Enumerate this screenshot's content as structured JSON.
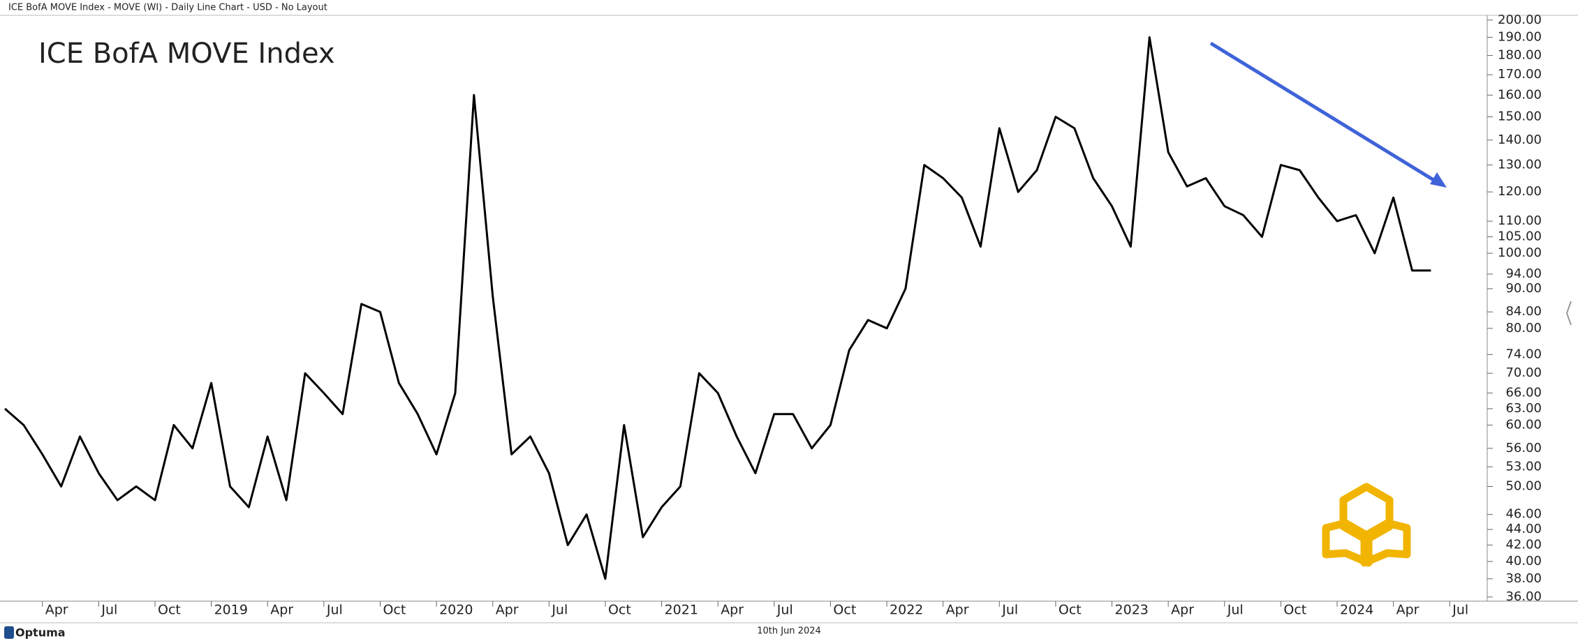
{
  "header": "ICE BofA MOVE Index - MOVE (WI) - Daily Line Chart - USD - No Layout",
  "footer": {
    "date": "10th Jun 2024",
    "brand": "Optuma"
  },
  "chart_data": {
    "type": "line",
    "title": "ICE BofA MOVE Index",
    "color": "#000000",
    "log_scale": true,
    "grid": false,
    "x": [
      "2018-02",
      "2018-03",
      "2018-04",
      "2018-05",
      "2018-06",
      "2018-07",
      "2018-08",
      "2018-09",
      "2018-10",
      "2018-11",
      "2018-12",
      "2019-01",
      "2019-02",
      "2019-03",
      "2019-04",
      "2019-05",
      "2019-06",
      "2019-07",
      "2019-08",
      "2019-09",
      "2019-10",
      "2019-11",
      "2019-12",
      "2020-01",
      "2020-02",
      "2020-03",
      "2020-04",
      "2020-05",
      "2020-06",
      "2020-07",
      "2020-08",
      "2020-09",
      "2020-10",
      "2020-11",
      "2020-12",
      "2021-01",
      "2021-02",
      "2021-03",
      "2021-04",
      "2021-05",
      "2021-06",
      "2021-07",
      "2021-08",
      "2021-09",
      "2021-10",
      "2021-11",
      "2021-12",
      "2022-01",
      "2022-02",
      "2022-03",
      "2022-04",
      "2022-05",
      "2022-06",
      "2022-07",
      "2022-08",
      "2022-09",
      "2022-10",
      "2022-11",
      "2022-12",
      "2023-01",
      "2023-02",
      "2023-03",
      "2023-04",
      "2023-05",
      "2023-06",
      "2023-07",
      "2023-08",
      "2023-09",
      "2023-10",
      "2023-11",
      "2023-12",
      "2024-01",
      "2024-02",
      "2024-03",
      "2024-04",
      "2024-05",
      "2024-06"
    ],
    "values": [
      63,
      60,
      55,
      50,
      58,
      52,
      48,
      50,
      48,
      60,
      56,
      68,
      50,
      47,
      58,
      48,
      70,
      66,
      62,
      86,
      84,
      68,
      62,
      55,
      66,
      160,
      88,
      55,
      58,
      52,
      42,
      46,
      38,
      60,
      43,
      47,
      50,
      70,
      66,
      58,
      52,
      62,
      62,
      56,
      60,
      75,
      82,
      80,
      90,
      130,
      125,
      118,
      102,
      145,
      120,
      128,
      150,
      145,
      125,
      115,
      102,
      190,
      135,
      122,
      125,
      115,
      112,
      105,
      130,
      128,
      118,
      110,
      112,
      100,
      118,
      95,
      95
    ],
    "xlim": [
      "2018-02",
      "2024-09"
    ],
    "xticks": [
      {
        "value": "2018-04",
        "label": "Apr"
      },
      {
        "value": "2018-07",
        "label": "Jul"
      },
      {
        "value": "2018-10",
        "label": "Oct"
      },
      {
        "value": "2019-01",
        "label": "2019"
      },
      {
        "value": "2019-04",
        "label": "Apr"
      },
      {
        "value": "2019-07",
        "label": "Jul"
      },
      {
        "value": "2019-10",
        "label": "Oct"
      },
      {
        "value": "2020-01",
        "label": "2020"
      },
      {
        "value": "2020-04",
        "label": "Apr"
      },
      {
        "value": "2020-07",
        "label": "Jul"
      },
      {
        "value": "2020-10",
        "label": "Oct"
      },
      {
        "value": "2021-01",
        "label": "2021"
      },
      {
        "value": "2021-04",
        "label": "Apr"
      },
      {
        "value": "2021-07",
        "label": "Jul"
      },
      {
        "value": "2021-10",
        "label": "Oct"
      },
      {
        "value": "2022-01",
        "label": "2022"
      },
      {
        "value": "2022-04",
        "label": "Apr"
      },
      {
        "value": "2022-07",
        "label": "Jul"
      },
      {
        "value": "2022-10",
        "label": "Oct"
      },
      {
        "value": "2023-01",
        "label": "2023"
      },
      {
        "value": "2023-04",
        "label": "Apr"
      },
      {
        "value": "2023-07",
        "label": "Jul"
      },
      {
        "value": "2023-10",
        "label": "Oct"
      },
      {
        "value": "2024-01",
        "label": "2024"
      },
      {
        "value": "2024-04",
        "label": "Apr"
      },
      {
        "value": "2024-07",
        "label": "Jul"
      }
    ],
    "ylim": [
      35.7,
      202.4
    ],
    "yticks": [
      {
        "value": 200,
        "label": "200.00"
      },
      {
        "value": 190,
        "label": "190.00"
      },
      {
        "value": 180,
        "label": "180.00"
      },
      {
        "value": 170,
        "label": "170.00"
      },
      {
        "value": 160,
        "label": "160.00"
      },
      {
        "value": 150,
        "label": "150.00"
      },
      {
        "value": 140,
        "label": "140.00"
      },
      {
        "value": 130,
        "label": "130.00"
      },
      {
        "value": 120,
        "label": "120.00"
      },
      {
        "value": 110,
        "label": "110.00"
      },
      {
        "value": 105,
        "label": "105.00"
      },
      {
        "value": 100,
        "label": "100.00"
      },
      {
        "value": 94,
        "label": "94.00"
      },
      {
        "value": 90,
        "label": "90.00"
      },
      {
        "value": 84,
        "label": "84.00"
      },
      {
        "value": 80,
        "label": "80.00"
      },
      {
        "value": 74,
        "label": "74.00"
      },
      {
        "value": 70,
        "label": "70.00"
      },
      {
        "value": 66,
        "label": "66.00"
      },
      {
        "value": 63,
        "label": "63.00"
      },
      {
        "value": 60,
        "label": "60.00"
      },
      {
        "value": 56,
        "label": "56.00"
      },
      {
        "value": 53,
        "label": "53.00"
      },
      {
        "value": 50,
        "label": "50.00"
      },
      {
        "value": 46,
        "label": "46.00"
      },
      {
        "value": 44,
        "label": "44.00"
      },
      {
        "value": 42,
        "label": "42.00"
      },
      {
        "value": 40,
        "label": "40.00"
      },
      {
        "value": 38,
        "label": "38.00"
      },
      {
        "value": 36,
        "label": "36.00"
      }
    ]
  }
}
